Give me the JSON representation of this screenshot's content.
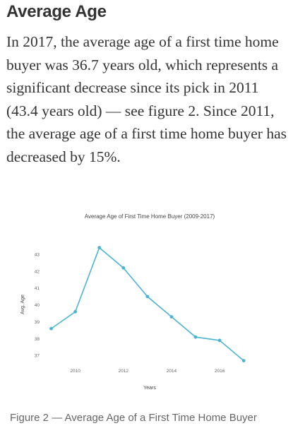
{
  "section": {
    "heading": "Average Age",
    "paragraph": "In 2017, the average age of a first time home buyer was 36.7 years old, which represents a significant decrease since its pick in 2011 (43.4 years old) — see figure 2. Since 2011, the average age of a first time home buyer has decreased by 15%."
  },
  "figure": {
    "caption": "Figure 2 — Average Age of a First Time Home Buyer"
  },
  "chart_data": {
    "type": "line",
    "title": "Average Age of First Time Home Buyer (2009-2017)",
    "xlabel": "Years",
    "ylabel": "Avg. Age",
    "x": [
      2009,
      2010,
      2011,
      2012,
      2013,
      2014,
      2015,
      2016,
      2017
    ],
    "series": [
      {
        "values": [
          38.6,
          39.6,
          43.4,
          42.2,
          40.5,
          39.3,
          38.1,
          37.9,
          36.7
        ],
        "color": "#4ab3d6"
      }
    ],
    "xticks": [
      "2010",
      "2012",
      "2014",
      "2016"
    ],
    "yticks": [
      "37",
      "38",
      "39",
      "40",
      "41",
      "42",
      "43"
    ],
    "xlim": [
      2008.75,
      2017.2
    ],
    "ylim": [
      36.6,
      43.55
    ],
    "grid": false,
    "legend": "none"
  }
}
